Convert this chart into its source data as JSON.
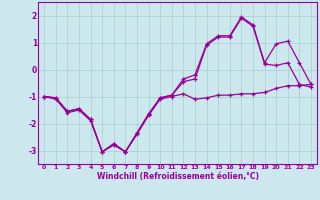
{
  "xlabel": "Windchill (Refroidissement éolien,°C)",
  "background_color": "#cce8ee",
  "grid_color": "#aad4cc",
  "line_color": "#990099",
  "x_hours": [
    0,
    1,
    2,
    3,
    4,
    5,
    6,
    7,
    8,
    9,
    10,
    11,
    12,
    13,
    14,
    15,
    16,
    17,
    18,
    19,
    20,
    21,
    22,
    23
  ],
  "y_actual": [
    -1.0,
    -1.1,
    -1.6,
    -1.5,
    -1.9,
    -3.05,
    -2.8,
    -3.05,
    -2.4,
    -1.7,
    -1.1,
    -1.0,
    -0.9,
    -1.1,
    -1.05,
    -0.95,
    -0.95,
    -0.9,
    -0.9,
    -0.85,
    -0.7,
    -0.6,
    -0.6,
    -0.55
  ],
  "y_upper": [
    -1.0,
    -1.05,
    -1.55,
    -1.45,
    -1.85,
    -3.05,
    -2.75,
    -3.05,
    -2.35,
    -1.65,
    -1.05,
    -0.95,
    -0.35,
    -0.2,
    0.95,
    1.25,
    1.25,
    1.95,
    1.65,
    0.25,
    0.95,
    1.05,
    0.25,
    -0.55
  ],
  "y_lower": [
    -1.0,
    -1.05,
    -1.55,
    -1.45,
    -1.85,
    -3.05,
    -2.75,
    -3.05,
    -2.35,
    -1.65,
    -1.05,
    -0.95,
    -0.45,
    -0.35,
    0.9,
    1.2,
    1.2,
    1.9,
    1.6,
    0.2,
    0.15,
    0.25,
    -0.55,
    -0.65
  ],
  "ylim": [
    -3.5,
    2.5
  ],
  "yticks": [
    2,
    1,
    0,
    -1,
    -2,
    -3
  ],
  "xlim": [
    -0.5,
    23.5
  ]
}
